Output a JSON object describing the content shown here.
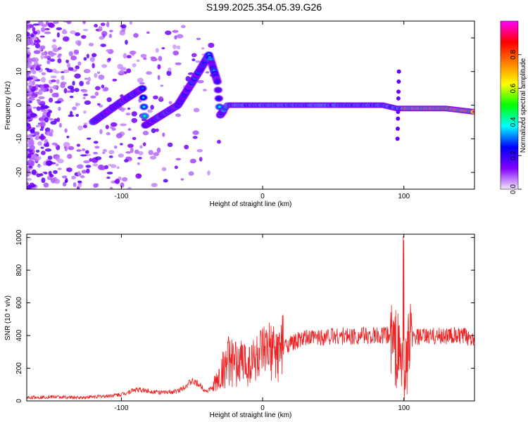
{
  "title": "S199.2025.354.05.39.G26",
  "chart_data": [
    {
      "type": "heatmap",
      "xlabel": "Height of straight line (km)",
      "ylabel": "Frequency (Hz)",
      "xlim": [
        -167,
        150
      ],
      "ylim": [
        -25,
        25
      ],
      "x_ticks": [
        -100,
        0,
        100
      ],
      "y_ticks": [
        -20,
        -10,
        0,
        10,
        20
      ],
      "colorbar": {
        "label": "Normalized spectral amplitude",
        "range": [
          0,
          1
        ],
        "ticks": [
          "0.0",
          "0.2",
          "0.4",
          "0.6",
          "0.8"
        ],
        "tick_values": [
          0,
          0.2,
          0.4,
          0.6,
          0.8
        ],
        "colormap": [
          "#f4e8fa",
          "#8000ff",
          "#0000ff",
          "#00ffff",
          "#00ff00",
          "#ffff00",
          "#ff8000",
          "#ff0000",
          "#ff00ff"
        ]
      },
      "ridge": [
        {
          "x": -120,
          "y": -5
        },
        {
          "x": -100,
          "y": 1
        },
        {
          "x": -85,
          "y": 5
        },
        {
          "x": -83,
          "y": -6
        },
        {
          "x": -60,
          "y": 0
        },
        {
          "x": -45,
          "y": 10
        },
        {
          "x": -38,
          "y": 15
        },
        {
          "x": -32,
          "y": 7
        },
        {
          "x": -30,
          "y": -3
        },
        {
          "x": -25,
          "y": 0
        },
        {
          "x": 0,
          "y": 0
        },
        {
          "x": 50,
          "y": 0
        },
        {
          "x": 85,
          "y": 0
        },
        {
          "x": 95,
          "y": -1
        },
        {
          "x": 110,
          "y": -1
        },
        {
          "x": 130,
          "y": -1
        },
        {
          "x": 150,
          "y": -2
        }
      ]
    },
    {
      "type": "line",
      "xlabel": "Height of straight line (km)",
      "ylabel": "SNR (10 * v/v)",
      "xlim": [
        -167,
        150
      ],
      "ylim": [
        0,
        1020
      ],
      "x_ticks": [
        -100,
        0,
        100
      ],
      "y_ticks": [
        0,
        200,
        400,
        600,
        800,
        1000
      ],
      "color": "#ee2222",
      "series": [
        {
          "x": [
            -167,
            -150,
            -130,
            -110,
            -100,
            -90,
            -80,
            -70,
            -60,
            -50,
            -45,
            -40,
            -35,
            -30,
            -25,
            -20,
            -15,
            -10,
            -5,
            0,
            5,
            10,
            15,
            20,
            25,
            30,
            40,
            50,
            60,
            70,
            80,
            85,
            90,
            93,
            96,
            98,
            100,
            102,
            104,
            106,
            110,
            120,
            130,
            140,
            150
          ],
          "y": [
            20,
            25,
            20,
            30,
            40,
            70,
            60,
            50,
            60,
            120,
            100,
            60,
            80,
            150,
            250,
            220,
            240,
            230,
            260,
            280,
            300,
            290,
            340,
            350,
            370,
            380,
            390,
            400,
            395,
            400,
            395,
            400,
            400,
            350,
            300,
            250,
            200,
            250,
            350,
            380,
            390,
            395,
            400,
            395,
            390
          ]
        }
      ]
    }
  ]
}
